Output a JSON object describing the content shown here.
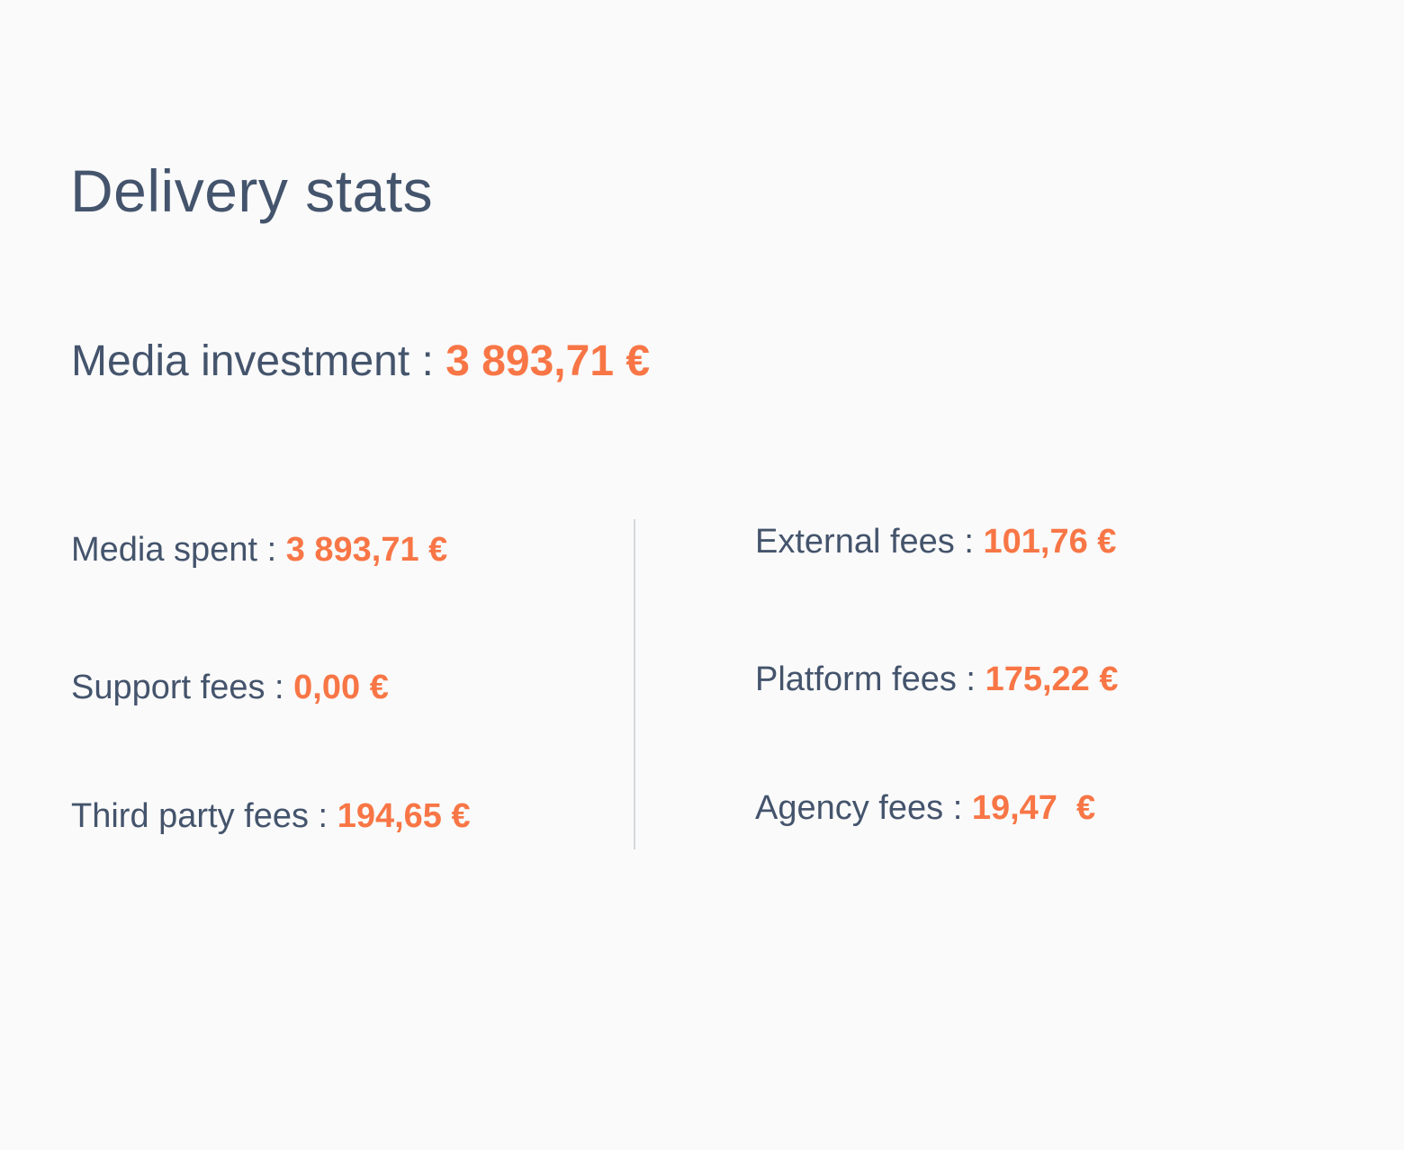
{
  "title": "Delivery stats",
  "media_investment": {
    "label": "Media investment",
    "separator": " : ",
    "value": "3 893,71 €"
  },
  "left_stats": [
    {
      "label": "Media spent",
      "separator": " : ",
      "value": "3 893,71 €"
    },
    {
      "label": "Support fees",
      "separator": " : ",
      "value": "0,00 €"
    },
    {
      "label": "Third party fees",
      "separator": " : ",
      "value": "194,65 €"
    }
  ],
  "right_stats": [
    {
      "label": "External fees",
      "separator": " : ",
      "value": "101,76 €"
    },
    {
      "label": "Platform fees",
      "separator": " : ",
      "value": "175,22 €"
    },
    {
      "label": "Agency fees",
      "separator": " : ",
      "value": "19,47  €"
    }
  ],
  "colors": {
    "text": "#44546c",
    "accent": "#f87646",
    "background": "#fafafa",
    "divider": "#d6d8db"
  }
}
